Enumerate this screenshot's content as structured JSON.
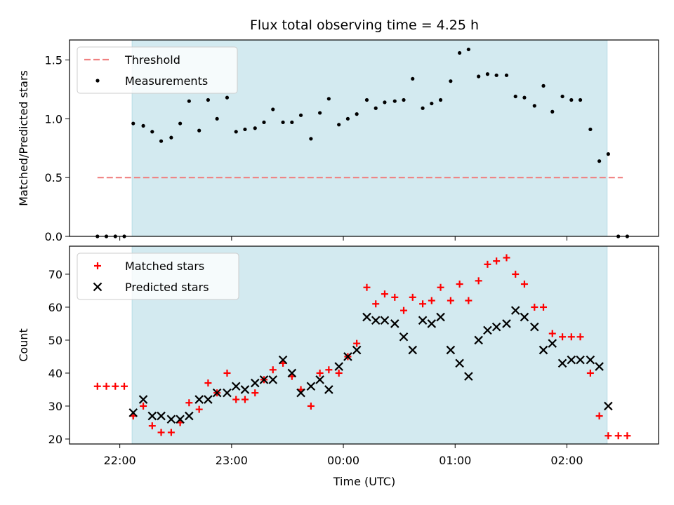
{
  "chart_data": {
    "type": "scatter",
    "title": "Flux total observing time = 4.25 h",
    "xlabel": "Time (UTC)",
    "x_ticks": [
      "22:00",
      "23:00",
      "00:00",
      "01:00",
      "02:00"
    ],
    "x_tick_hours": [
      0,
      1,
      2,
      3,
      4
    ],
    "x_range_hours": [
      -0.45,
      4.82
    ],
    "observing_window_hours": [
      0.11,
      4.36
    ],
    "colors": {
      "window": "#d3eaf0",
      "threshold": "#f08080",
      "matched": "#ff0000",
      "predicted": "#000000",
      "measurement": "#000000"
    },
    "panels": [
      {
        "id": "ratio",
        "ylabel": "Matched/Predicted stars",
        "ylim": [
          0,
          1.67
        ],
        "y_ticks": [
          0.0,
          0.5,
          1.0,
          1.5
        ],
        "y_tick_labels": [
          "0.0",
          "0.5",
          "1.0",
          "1.5"
        ],
        "legend": {
          "position": "top-left",
          "entries": [
            "Threshold",
            "Measurements"
          ]
        },
        "threshold": {
          "name": "Threshold",
          "value": 0.5,
          "x_start": -0.2,
          "x_end": 4.5
        },
        "measurements": {
          "name": "Measurements",
          "points": [
            [
              -0.2,
              0.0
            ],
            [
              -0.12,
              0.0
            ],
            [
              -0.04,
              0.0
            ],
            [
              0.04,
              0.0
            ],
            [
              0.12,
              0.96
            ],
            [
              0.21,
              0.94
            ],
            [
              0.29,
              0.89
            ],
            [
              0.37,
              0.81
            ],
            [
              0.46,
              0.84
            ],
            [
              0.54,
              0.96
            ],
            [
              0.62,
              1.15
            ],
            [
              0.71,
              0.9
            ],
            [
              0.79,
              1.16
            ],
            [
              0.87,
              1.0
            ],
            [
              0.96,
              1.18
            ],
            [
              1.04,
              0.89
            ],
            [
              1.12,
              0.91
            ],
            [
              1.21,
              0.92
            ],
            [
              1.29,
              0.97
            ],
            [
              1.37,
              1.08
            ],
            [
              1.46,
              0.97
            ],
            [
              1.54,
              0.97
            ],
            [
              1.62,
              1.03
            ],
            [
              1.71,
              0.83
            ],
            [
              1.79,
              1.05
            ],
            [
              1.87,
              1.17
            ],
            [
              1.96,
              0.95
            ],
            [
              2.04,
              1.0
            ],
            [
              2.12,
              1.04
            ],
            [
              2.21,
              1.16
            ],
            [
              2.29,
              1.09
            ],
            [
              2.37,
              1.14
            ],
            [
              2.46,
              1.15
            ],
            [
              2.54,
              1.16
            ],
            [
              2.62,
              1.34
            ],
            [
              2.71,
              1.09
            ],
            [
              2.79,
              1.13
            ],
            [
              2.87,
              1.16
            ],
            [
              2.96,
              1.32
            ],
            [
              3.04,
              1.56
            ],
            [
              3.12,
              1.59
            ],
            [
              3.21,
              1.36
            ],
            [
              3.29,
              1.38
            ],
            [
              3.37,
              1.37
            ],
            [
              3.46,
              1.37
            ],
            [
              3.54,
              1.19
            ],
            [
              3.62,
              1.18
            ],
            [
              3.71,
              1.11
            ],
            [
              3.79,
              1.28
            ],
            [
              3.87,
              1.06
            ],
            [
              3.96,
              1.19
            ],
            [
              4.04,
              1.16
            ],
            [
              4.12,
              1.16
            ],
            [
              4.21,
              0.91
            ],
            [
              4.29,
              0.64
            ],
            [
              4.37,
              0.7
            ],
            [
              4.46,
              0.0
            ],
            [
              4.54,
              0.0
            ]
          ]
        }
      },
      {
        "id": "counts",
        "ylabel": "Count",
        "ylim": [
          18.5,
          78.5
        ],
        "y_ticks": [
          20,
          30,
          40,
          50,
          60,
          70
        ],
        "y_tick_labels": [
          "20",
          "30",
          "40",
          "50",
          "60",
          "70"
        ],
        "legend": {
          "position": "top-left",
          "entries": [
            "Matched stars",
            "Predicted stars"
          ]
        },
        "series": [
          {
            "name": "Matched stars",
            "marker": "plus",
            "points": [
              [
                -0.2,
                36
              ],
              [
                -0.12,
                36
              ],
              [
                -0.04,
                36
              ],
              [
                0.04,
                36
              ],
              [
                0.12,
                27
              ],
              [
                0.21,
                30
              ],
              [
                0.29,
                24
              ],
              [
                0.37,
                22
              ],
              [
                0.46,
                22
              ],
              [
                0.54,
                25
              ],
              [
                0.62,
                31
              ],
              [
                0.71,
                29
              ],
              [
                0.79,
                37
              ],
              [
                0.87,
                34
              ],
              [
                0.96,
                40
              ],
              [
                1.04,
                32
              ],
              [
                1.12,
                32
              ],
              [
                1.21,
                34
              ],
              [
                1.29,
                38
              ],
              [
                1.37,
                41
              ],
              [
                1.46,
                43
              ],
              [
                1.54,
                39
              ],
              [
                1.62,
                35
              ],
              [
                1.71,
                30
              ],
              [
                1.79,
                40
              ],
              [
                1.87,
                41
              ],
              [
                1.96,
                40
              ],
              [
                2.04,
                45
              ],
              [
                2.12,
                49
              ],
              [
                2.21,
                66
              ],
              [
                2.29,
                61
              ],
              [
                2.37,
                64
              ],
              [
                2.46,
                63
              ],
              [
                2.54,
                59
              ],
              [
                2.62,
                63
              ],
              [
                2.71,
                61
              ],
              [
                2.79,
                62
              ],
              [
                2.87,
                66
              ],
              [
                2.96,
                62
              ],
              [
                3.04,
                67
              ],
              [
                3.12,
                62
              ],
              [
                3.21,
                68
              ],
              [
                3.29,
                73
              ],
              [
                3.37,
                74
              ],
              [
                3.46,
                75
              ],
              [
                3.54,
                70
              ],
              [
                3.62,
                67
              ],
              [
                3.71,
                60
              ],
              [
                3.79,
                60
              ],
              [
                3.87,
                52
              ],
              [
                3.96,
                51
              ],
              [
                4.04,
                51
              ],
              [
                4.12,
                51
              ],
              [
                4.21,
                40
              ],
              [
                4.29,
                27
              ],
              [
                4.37,
                21
              ],
              [
                4.46,
                21
              ],
              [
                4.54,
                21
              ]
            ]
          },
          {
            "name": "Predicted stars",
            "marker": "x",
            "points": [
              [
                0.12,
                28
              ],
              [
                0.21,
                32
              ],
              [
                0.29,
                27
              ],
              [
                0.37,
                27
              ],
              [
                0.46,
                26
              ],
              [
                0.54,
                26
              ],
              [
                0.62,
                27
              ],
              [
                0.71,
                32
              ],
              [
                0.79,
                32
              ],
              [
                0.87,
                34
              ],
              [
                0.96,
                34
              ],
              [
                1.04,
                36
              ],
              [
                1.12,
                35
              ],
              [
                1.21,
                37
              ],
              [
                1.29,
                38
              ],
              [
                1.37,
                38
              ],
              [
                1.46,
                44
              ],
              [
                1.54,
                40
              ],
              [
                1.62,
                34
              ],
              [
                1.71,
                36
              ],
              [
                1.79,
                38
              ],
              [
                1.87,
                35
              ],
              [
                1.96,
                42
              ],
              [
                2.04,
                45
              ],
              [
                2.12,
                47
              ],
              [
                2.21,
                57
              ],
              [
                2.29,
                56
              ],
              [
                2.37,
                56
              ],
              [
                2.46,
                55
              ],
              [
                2.54,
                51
              ],
              [
                2.62,
                47
              ],
              [
                2.71,
                56
              ],
              [
                2.79,
                55
              ],
              [
                2.87,
                57
              ],
              [
                2.96,
                47
              ],
              [
                3.04,
                43
              ],
              [
                3.12,
                39
              ],
              [
                3.21,
                50
              ],
              [
                3.29,
                53
              ],
              [
                3.37,
                54
              ],
              [
                3.46,
                55
              ],
              [
                3.54,
                59
              ],
              [
                3.62,
                57
              ],
              [
                3.71,
                54
              ],
              [
                3.79,
                47
              ],
              [
                3.87,
                49
              ],
              [
                3.96,
                43
              ],
              [
                4.04,
                44
              ],
              [
                4.12,
                44
              ],
              [
                4.21,
                44
              ],
              [
                4.29,
                42
              ],
              [
                4.37,
                30
              ]
            ]
          }
        ]
      }
    ]
  }
}
